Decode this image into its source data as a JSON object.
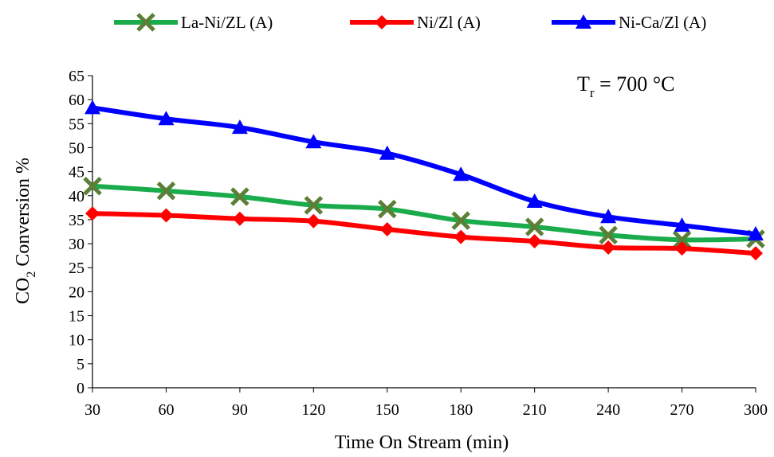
{
  "chart_data": {
    "type": "line",
    "x": [
      30,
      60,
      90,
      120,
      150,
      180,
      210,
      240,
      270,
      300
    ],
    "series": [
      {
        "name": "La-Ni/ZL (A)",
        "color": "#1aab4b",
        "marker_color": "#5b7f36",
        "marker": "x-icon",
        "values": [
          42.0,
          41.0,
          39.8,
          38.0,
          37.2,
          34.8,
          33.5,
          31.8,
          30.8,
          31.0
        ]
      },
      {
        "name": "Ni/Zl (A)",
        "color": "#ff0000",
        "marker_color": "#ff0000",
        "marker": "diamond-icon",
        "values": [
          36.3,
          35.9,
          35.2,
          34.7,
          33.0,
          31.4,
          30.5,
          29.2,
          29.0,
          28.0
        ]
      },
      {
        "name": "Ni-Ca/Zl (A)",
        "color": "#0000ff",
        "marker_color": "#0000ff",
        "marker": "triangle-icon",
        "values": [
          58.3,
          56.0,
          54.2,
          51.2,
          48.8,
          44.4,
          38.8,
          35.6,
          33.8,
          32.0
        ]
      }
    ],
    "xlabel": "Time On Stream (min)",
    "ylabel": {
      "prefix": "CO",
      "subscript": "2",
      "rest": " Conversion  %"
    },
    "x_ticks": [
      "30",
      "60",
      "90",
      "120",
      "150",
      "180",
      "210",
      "240",
      "270",
      "300"
    ],
    "y_ticks": [
      "0",
      "5",
      "10",
      "15",
      "20",
      "25",
      "30",
      "35",
      "40",
      "45",
      "50",
      "55",
      "60",
      "65"
    ],
    "xlim": [
      30,
      300
    ],
    "ylim": [
      0,
      65
    ],
    "grid": false,
    "legend_position": "top",
    "annotation": {
      "base": "T",
      "subscript": "r",
      "rest": " = 700 °C"
    }
  }
}
